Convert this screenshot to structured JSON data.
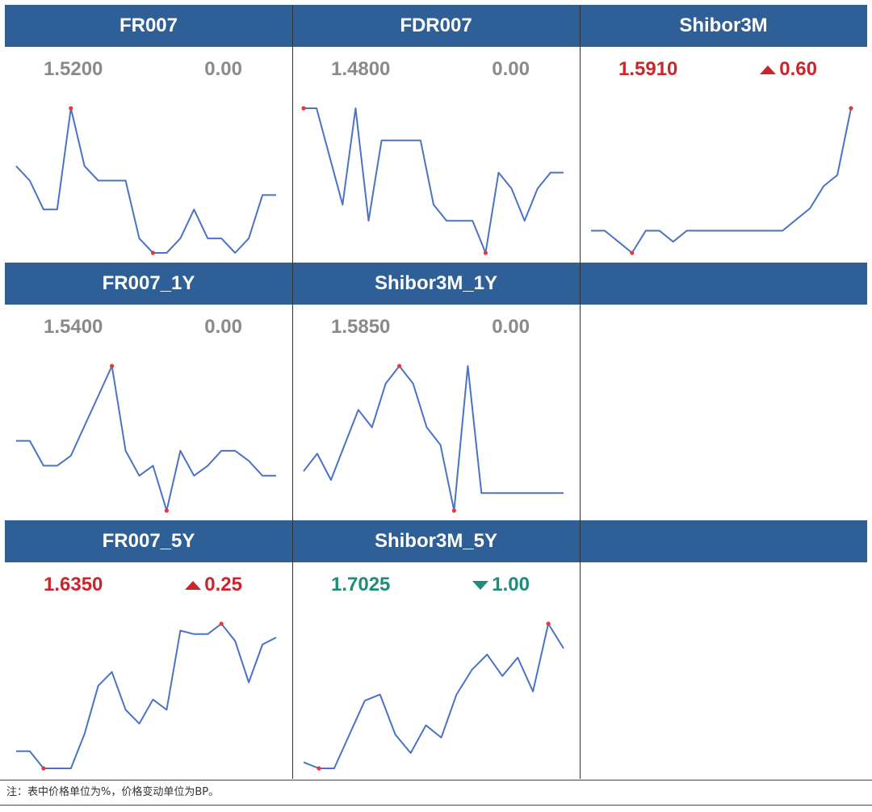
{
  "colors": {
    "header_bg": "#2f5f97",
    "line": "#4a73c4",
    "marker": "#e23b3b",
    "neutral": "#8a8a8a",
    "up": "#c8272d",
    "down": "#1e8c78"
  },
  "note": "注：表中价格单位为%，价格变动单位为BP。",
  "chart_data": [
    {
      "type": "line",
      "title": "FR007",
      "value": "1.5200",
      "change": "0.00",
      "direction": "flat",
      "values": [
        1.55,
        1.545,
        1.535,
        1.535,
        1.57,
        1.55,
        1.545,
        1.545,
        1.545,
        1.525,
        1.52,
        1.52,
        1.525,
        1.535,
        1.525,
        1.525,
        1.52,
        1.525,
        1.54,
        1.54
      ],
      "markers": [
        4,
        10
      ]
    },
    {
      "type": "line",
      "title": "FDR007",
      "value": "1.4800",
      "change": "0.00",
      "direction": "flat",
      "values": [
        1.525,
        1.525,
        1.51,
        1.495,
        1.525,
        1.49,
        1.515,
        1.515,
        1.515,
        1.515,
        1.495,
        1.49,
        1.49,
        1.49,
        1.48,
        1.505,
        1.5,
        1.49,
        1.5,
        1.505,
        1.505
      ],
      "markers": [
        0,
        14
      ]
    },
    {
      "type": "line",
      "title": "Shibor3M",
      "value": "1.5910",
      "change": "0.60",
      "direction": "up",
      "values": [
        1.574,
        1.574,
        1.573,
        1.572,
        1.574,
        1.574,
        1.573,
        1.574,
        1.574,
        1.574,
        1.574,
        1.574,
        1.574,
        1.574,
        1.574,
        1.575,
        1.576,
        1.578,
        1.579,
        1.585
      ],
      "markers": [
        3,
        19
      ]
    },
    {
      "type": "line",
      "title": "FR007_1Y",
      "value": "1.5400",
      "change": "0.00",
      "direction": "flat",
      "values": [
        1.545,
        1.545,
        1.54,
        1.54,
        1.542,
        1.548,
        1.554,
        1.56,
        1.543,
        1.538,
        1.54,
        1.531,
        1.543,
        1.538,
        1.54,
        1.543,
        1.543,
        1.541,
        1.538,
        1.538
      ],
      "markers": [
        7,
        11
      ]
    },
    {
      "type": "line",
      "title": "Shibor3M_1Y",
      "value": "1.5850",
      "change": "0.00",
      "direction": "flat",
      "values": [
        1.594,
        1.598,
        1.592,
        1.6,
        1.608,
        1.604,
        1.614,
        1.618,
        1.614,
        1.604,
        1.6,
        1.585,
        1.618,
        1.589,
        1.589,
        1.589,
        1.589,
        1.589,
        1.589,
        1.589
      ],
      "markers": [
        7,
        11
      ]
    },
    {
      "type": "line",
      "title": "FR007_5Y",
      "value": "1.6350",
      "change": "0.25",
      "direction": "up",
      "values": [
        1.585,
        1.585,
        1.58,
        1.58,
        1.58,
        1.59,
        1.604,
        1.608,
        1.597,
        1.593,
        1.6,
        1.597,
        1.62,
        1.619,
        1.619,
        1.622,
        1.617,
        1.605,
        1.616,
        1.618
      ],
      "markers": [
        2,
        15
      ]
    },
    {
      "type": "line",
      "title": "Shibor3M_5Y",
      "value": "1.7025",
      "change": "1.00",
      "direction": "down",
      "values": [
        1.637,
        1.635,
        1.635,
        1.646,
        1.657,
        1.659,
        1.646,
        1.64,
        1.649,
        1.645,
        1.659,
        1.667,
        1.672,
        1.665,
        1.671,
        1.66,
        1.682,
        1.674
      ],
      "markers": [
        1,
        16
      ]
    }
  ]
}
